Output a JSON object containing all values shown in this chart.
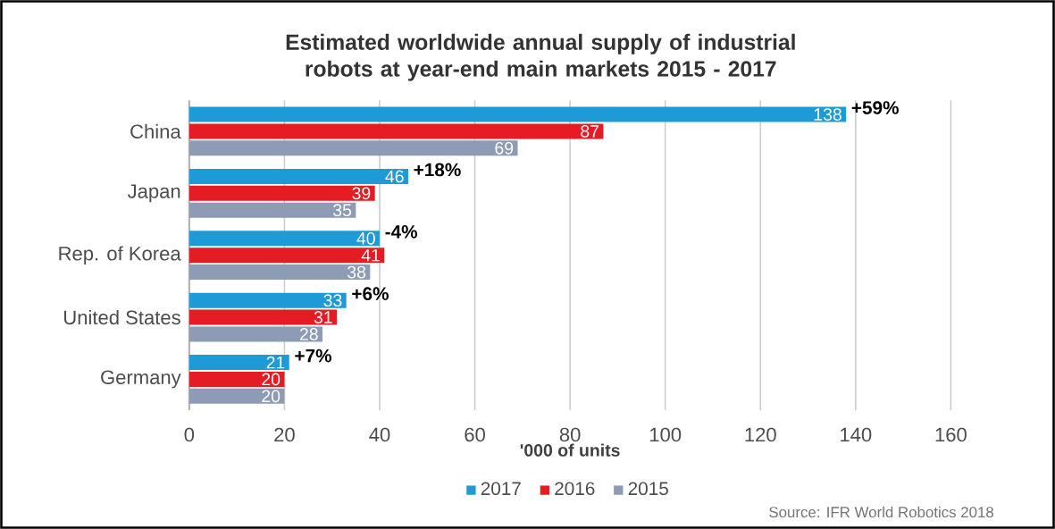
{
  "chart_data": {
    "type": "bar",
    "orientation": "horizontal",
    "title": "Estimated worldwide annual supply of industrial robots at year-end main markets 2015 - 2017",
    "xlabel": "'000 of units",
    "categories": [
      "China",
      "Japan",
      "Rep. of Korea",
      "United States",
      "Germany"
    ],
    "series": [
      {
        "name": "2017",
        "color": "#1e9bd7",
        "values": [
          138,
          46,
          40,
          33,
          21
        ]
      },
      {
        "name": "2016",
        "color": "#e51c23",
        "values": [
          87,
          39,
          41,
          31,
          20
        ]
      },
      {
        "name": "2015",
        "color": "#8d9bb5",
        "values": [
          69,
          35,
          38,
          28,
          20
        ]
      }
    ],
    "xlim": [
      0,
      160
    ],
    "xticks": [
      0,
      20,
      40,
      60,
      80,
      100,
      120,
      140,
      160
    ],
    "grid": "x",
    "legend": "bottom",
    "data_labels": true,
    "annotations": [
      "+59%",
      "+18%",
      "-4%",
      "+6%",
      "+7%",
      "Source: IFR World Robotics 2018"
    ]
  }
}
